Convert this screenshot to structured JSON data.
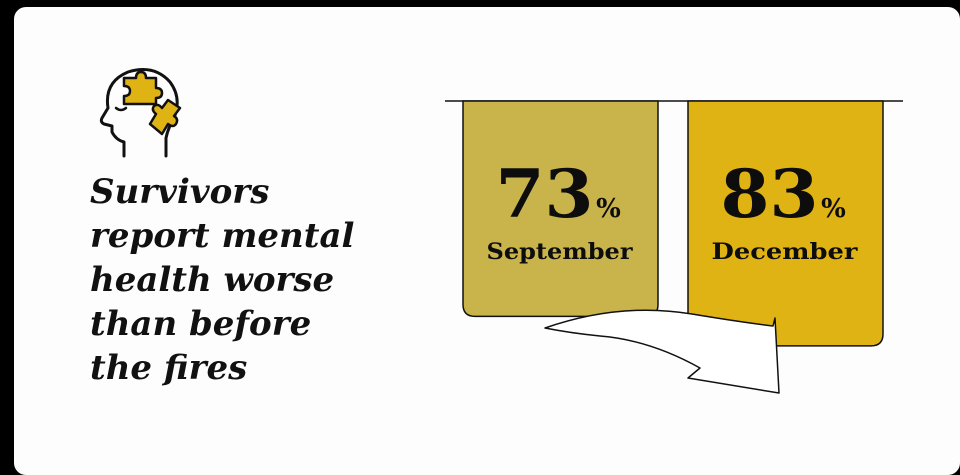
{
  "headline": {
    "lines": [
      "Survivors",
      "report mental",
      "health worse",
      "than before",
      "the fires"
    ]
  },
  "icon": "head-puzzle-icon",
  "colors": {
    "background": "#000000",
    "card": "#fdfdfd",
    "bar_september": "#c9b44c",
    "bar_december": "#e0b314",
    "icon_accent": "#e0b314",
    "arrow": "#ffffff"
  },
  "chart_data": {
    "type": "bar",
    "categories": [
      "September",
      "December"
    ],
    "values": [
      73,
      83
    ],
    "unit": "%",
    "value_labels": [
      "73",
      "83"
    ],
    "unit_label": "%",
    "colors": [
      "#c9b44c",
      "#e0b314"
    ],
    "annotation": "arrow from September to December"
  }
}
